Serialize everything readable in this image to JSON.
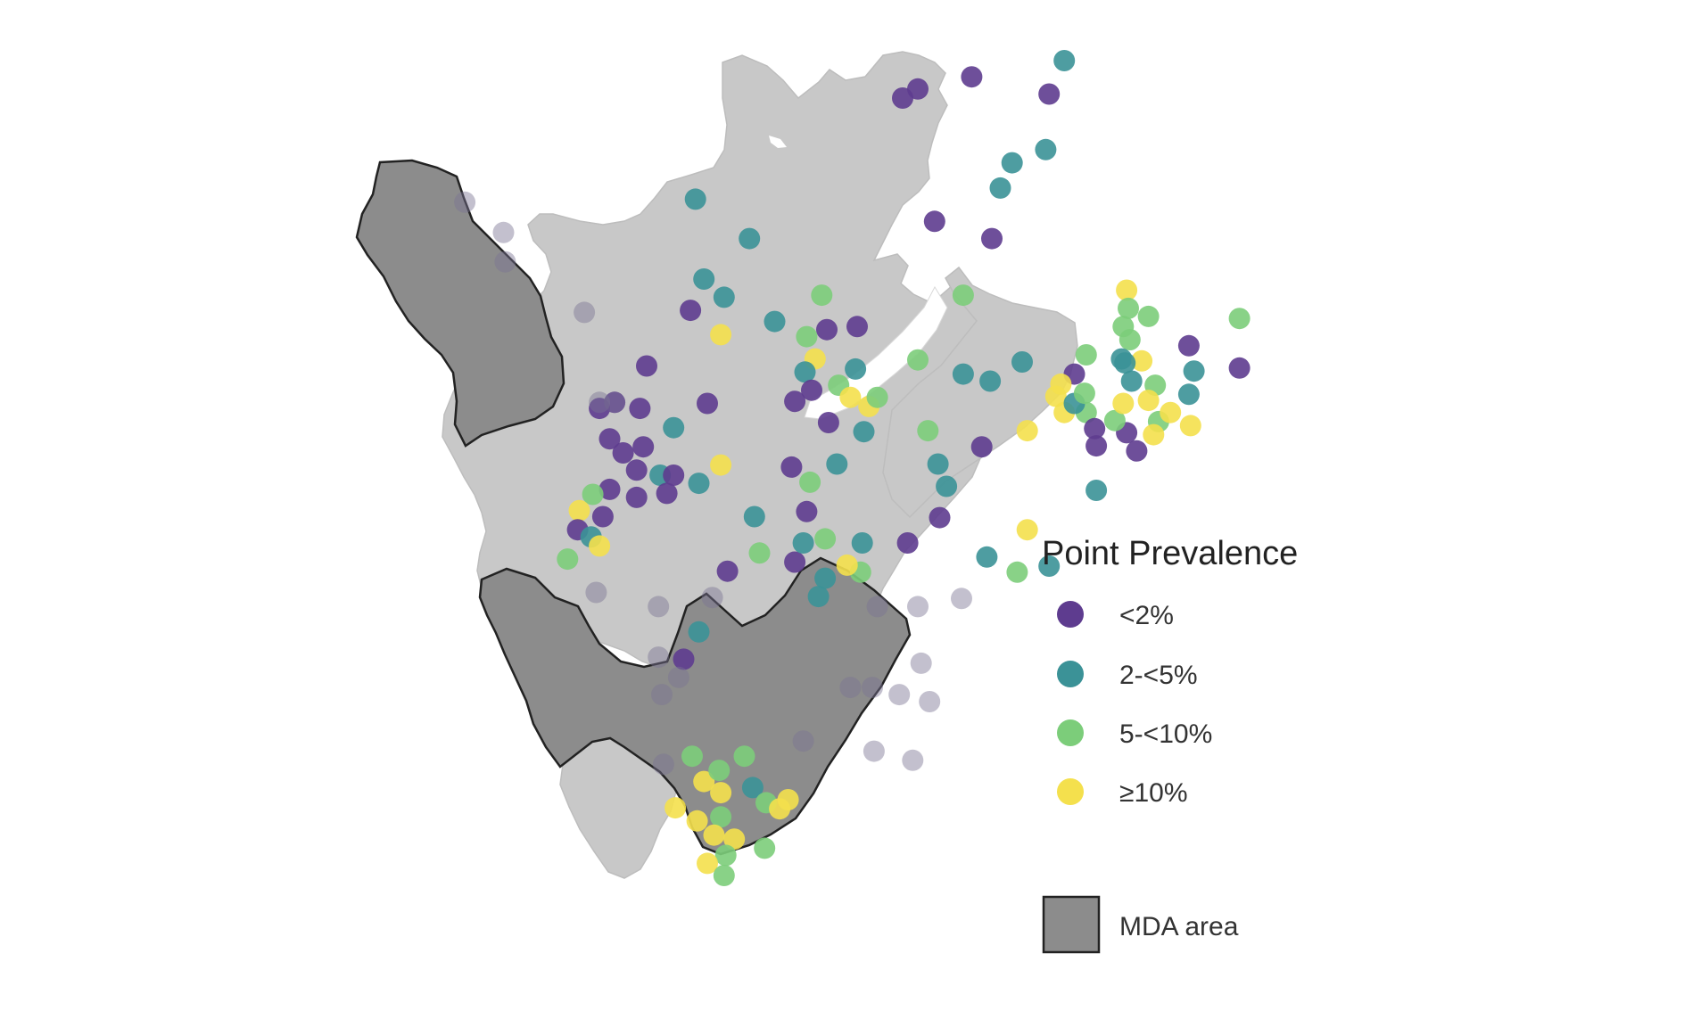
{
  "legend": {
    "title": "Point Prevalence",
    "classes": [
      {
        "key": "lt2",
        "label": "<2%",
        "color": "#5e3c8f"
      },
      {
        "key": "2to5",
        "label": "2-<5%",
        "color": "#3b9297"
      },
      {
        "key": "5to10",
        "label": "5-<10%",
        "color": "#7ccd7a"
      },
      {
        "key": "ge10",
        "label": "≥10%",
        "color": "#f4e04d"
      }
    ],
    "mda_label": "MDA area",
    "mda_color": "#8c8c8c"
  },
  "map": {
    "land_color": "#c8c8c8",
    "lake_color": "#ffffff"
  },
  "points": [
    [
      "lt2",
      0.545,
      0.088
    ],
    [
      "lt2",
      0.577,
      0.076
    ],
    [
      "lt2",
      0.536,
      0.097
    ],
    [
      "lt2",
      0.623,
      0.093
    ],
    [
      "2to5",
      0.632,
      0.06
    ],
    [
      "2to5",
      0.621,
      0.148
    ],
    [
      "2to5",
      0.601,
      0.161
    ],
    [
      "2to5",
      0.594,
      0.186
    ],
    [
      "lt2",
      0.555,
      0.219
    ],
    [
      "lt2",
      0.589,
      0.236
    ],
    [
      "2to5",
      0.413,
      0.197
    ],
    [
      "2to5",
      0.445,
      0.236
    ],
    [
      "2to5",
      0.418,
      0.276
    ],
    [
      "2to5",
      0.43,
      0.294
    ],
    [
      "5to10",
      0.488,
      0.292
    ],
    [
      "5to10",
      0.572,
      0.292
    ],
    [
      "lt2",
      0.41,
      0.307
    ],
    [
      "ge10",
      0.428,
      0.331
    ],
    [
      "2to5",
      0.46,
      0.318
    ],
    [
      "lt2",
      0.491,
      0.326
    ],
    [
      "lt2",
      0.509,
      0.323
    ],
    [
      "5to10",
      0.479,
      0.333
    ],
    [
      "ge10",
      0.484,
      0.355
    ],
    [
      "2to5",
      0.478,
      0.368
    ],
    [
      "lt2",
      0.482,
      0.386
    ],
    [
      "5to10",
      0.498,
      0.381
    ],
    [
      "ge10",
      0.505,
      0.393
    ],
    [
      "lt2",
      0.472,
      0.397
    ],
    [
      "2to5",
      0.508,
      0.365
    ],
    [
      "5to10",
      0.545,
      0.356
    ],
    [
      "2to5",
      0.572,
      0.37
    ],
    [
      "2to5",
      0.607,
      0.358
    ],
    [
      "ge10",
      0.516,
      0.402
    ],
    [
      "5to10",
      0.521,
      0.393
    ],
    [
      "2to5",
      0.513,
      0.427
    ],
    [
      "lt2",
      0.492,
      0.418
    ],
    [
      "lt2",
      0.42,
      0.399
    ],
    [
      "2to5",
      0.4,
      0.423
    ],
    [
      "lt2",
      0.356,
      0.404
    ],
    [
      "lt2",
      0.365,
      0.398
    ],
    [
      "lt2",
      0.38,
      0.404
    ],
    [
      "lt2",
      0.384,
      0.362
    ],
    [
      "lt2",
      0.362,
      0.434
    ],
    [
      "lt2",
      0.37,
      0.448
    ],
    [
      "lt2",
      0.382,
      0.442
    ],
    [
      "lt2",
      0.378,
      0.465
    ],
    [
      "2to5",
      0.392,
      0.47
    ],
    [
      "lt2",
      0.4,
      0.47
    ],
    [
      "lt2",
      0.362,
      0.484
    ],
    [
      "lt2",
      0.378,
      0.492
    ],
    [
      "lt2",
      0.396,
      0.488
    ],
    [
      "5to10",
      0.352,
      0.489
    ],
    [
      "lt2",
      0.358,
      0.511
    ],
    [
      "ge10",
      0.344,
      0.505
    ],
    [
      "lt2",
      0.343,
      0.524
    ],
    [
      "2to5",
      0.351,
      0.531
    ],
    [
      "ge10",
      0.356,
      0.54
    ],
    [
      "5to10",
      0.337,
      0.553
    ],
    [
      "ge10",
      0.428,
      0.46
    ],
    [
      "2to5",
      0.415,
      0.478
    ],
    [
      "lt2",
      0.47,
      0.462
    ],
    [
      "5to10",
      0.481,
      0.477
    ],
    [
      "2to5",
      0.497,
      0.459
    ],
    [
      "lt2",
      0.479,
      0.506
    ],
    [
      "2to5",
      0.448,
      0.511
    ],
    [
      "5to10",
      0.451,
      0.547
    ],
    [
      "lt2",
      0.472,
      0.556
    ],
    [
      "lt2",
      0.432,
      0.565
    ],
    [
      "2to5",
      0.477,
      0.537
    ],
    [
      "5to10",
      0.49,
      0.533
    ],
    [
      "2to5",
      0.512,
      0.537
    ],
    [
      "lt2",
      0.539,
      0.537
    ],
    [
      "5to10",
      0.511,
      0.566
    ],
    [
      "2to5",
      0.49,
      0.572
    ],
    [
      "2to5",
      0.486,
      0.59
    ],
    [
      "ge10",
      0.503,
      0.559
    ],
    [
      "5to10",
      0.551,
      0.426
    ],
    [
      "2to5",
      0.557,
      0.459
    ],
    [
      "2to5",
      0.562,
      0.481
    ],
    [
      "lt2",
      0.558,
      0.512
    ],
    [
      "lt2",
      0.583,
      0.442
    ],
    [
      "2to5",
      0.588,
      0.377
    ],
    [
      "ge10",
      0.61,
      0.426
    ],
    [
      "5to10",
      0.645,
      0.408
    ],
    [
      "ge10",
      0.632,
      0.408
    ],
    [
      "lt2",
      0.638,
      0.37
    ],
    [
      "ge10",
      0.627,
      0.392
    ],
    [
      "2to5",
      0.638,
      0.399
    ],
    [
      "5to10",
      0.644,
      0.389
    ],
    [
      "ge10",
      0.63,
      0.38
    ],
    [
      "lt2",
      0.65,
      0.424
    ],
    [
      "lt2",
      0.651,
      0.441
    ],
    [
      "lt2",
      0.669,
      0.428
    ],
    [
      "lt2",
      0.675,
      0.446
    ],
    [
      "5to10",
      0.662,
      0.416
    ],
    [
      "ge10",
      0.667,
      0.399
    ],
    [
      "5to10",
      0.688,
      0.417
    ],
    [
      "ge10",
      0.695,
      0.408
    ],
    [
      "ge10",
      0.707,
      0.421
    ],
    [
      "2to5",
      0.651,
      0.485
    ],
    [
      "ge10",
      0.61,
      0.524
    ],
    [
      "2to5",
      0.623,
      0.56
    ],
    [
      "5to10",
      0.604,
      0.566
    ],
    [
      "2to5",
      0.586,
      0.551
    ],
    [
      "ge10",
      0.669,
      0.287
    ],
    [
      "5to10",
      0.67,
      0.305
    ],
    [
      "5to10",
      0.682,
      0.313
    ],
    [
      "5to10",
      0.667,
      0.323
    ],
    [
      "5to10",
      0.671,
      0.336
    ],
    [
      "5to10",
      0.645,
      0.351
    ],
    [
      "2to5",
      0.666,
      0.355
    ],
    [
      "ge10",
      0.678,
      0.357
    ],
    [
      "lt2",
      0.706,
      0.342
    ],
    [
      "2to5",
      0.709,
      0.367
    ],
    [
      "5to10",
      0.736,
      0.315
    ],
    [
      "lt2",
      0.736,
      0.364
    ],
    [
      "5to10",
      0.686,
      0.381
    ],
    [
      "2to5",
      0.706,
      0.39
    ],
    [
      "2to5",
      0.672,
      0.377
    ],
    [
      "ge10",
      0.682,
      0.396
    ],
    [
      "ge10",
      0.685,
      0.43
    ],
    [
      "2to5",
      0.668,
      0.359
    ],
    [
      "2to5",
      0.415,
      0.625
    ],
    [
      "lt2",
      0.406,
      0.652
    ],
    [
      "ge10",
      0.418,
      0.773
    ],
    [
      "5to10",
      0.427,
      0.762
    ],
    [
      "ge10",
      0.428,
      0.784
    ],
    [
      "2to5",
      0.447,
      0.779
    ],
    [
      "5to10",
      0.455,
      0.794
    ],
    [
      "ge10",
      0.401,
      0.799
    ],
    [
      "ge10",
      0.414,
      0.812
    ],
    [
      "5to10",
      0.428,
      0.808
    ],
    [
      "ge10",
      0.424,
      0.826
    ],
    [
      "ge10",
      0.436,
      0.83
    ],
    [
      "5to10",
      0.431,
      0.846
    ],
    [
      "5to10",
      0.454,
      0.839
    ],
    [
      "ge10",
      0.463,
      0.8
    ],
    [
      "ge10",
      0.42,
      0.854
    ],
    [
      "5to10",
      0.43,
      0.866
    ],
    [
      "ge10",
      0.468,
      0.791
    ],
    [
      "5to10",
      0.442,
      0.748
    ],
    [
      "5to10",
      0.411,
      0.748
    ]
  ],
  "mda_points": [
    [
      0.276,
      0.2
    ],
    [
      0.299,
      0.23
    ],
    [
      0.3,
      0.259
    ],
    [
      0.347,
      0.309
    ],
    [
      0.365,
      0.398
    ],
    [
      0.356,
      0.398
    ],
    [
      0.354,
      0.586
    ],
    [
      0.391,
      0.6
    ],
    [
      0.423,
      0.591
    ],
    [
      0.521,
      0.6
    ],
    [
      0.545,
      0.6
    ],
    [
      0.571,
      0.592
    ],
    [
      0.391,
      0.65
    ],
    [
      0.403,
      0.67
    ],
    [
      0.393,
      0.687
    ],
    [
      0.505,
      0.68
    ],
    [
      0.518,
      0.68
    ],
    [
      0.534,
      0.687
    ],
    [
      0.547,
      0.656
    ],
    [
      0.552,
      0.694
    ],
    [
      0.477,
      0.733
    ],
    [
      0.519,
      0.743
    ],
    [
      0.542,
      0.752
    ],
    [
      0.394,
      0.756
    ]
  ]
}
